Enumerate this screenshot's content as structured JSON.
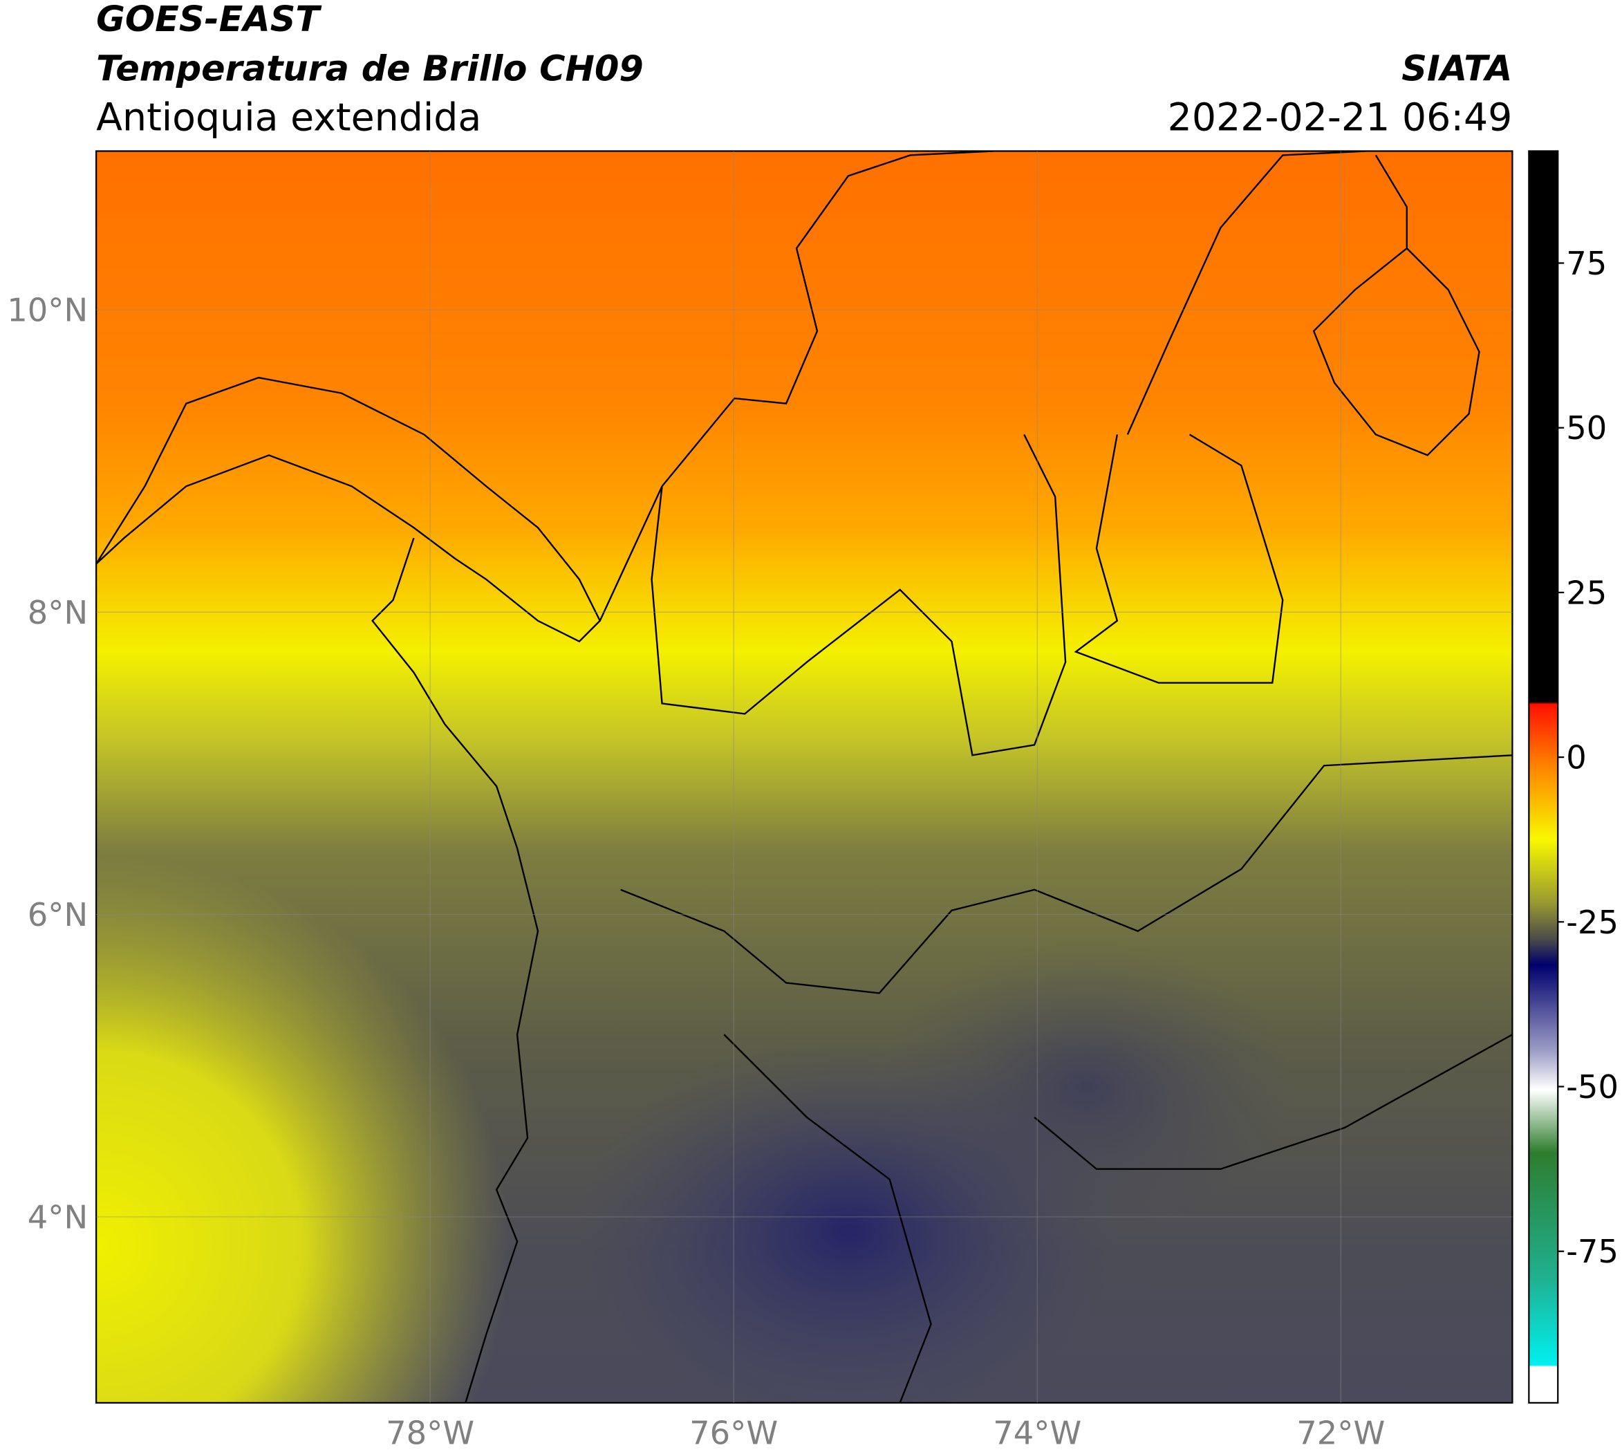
{
  "header": {
    "title": "GOES-EAST",
    "subtitle": "Temperatura de Brillo CH09",
    "region": "Antioquia extendida",
    "source": "SIATA",
    "datetime": "2022-02-21 06:49"
  },
  "map": {
    "lonlim": [
      -80.2,
      -70.87
    ],
    "latlim": [
      2.77,
      11.05
    ],
    "lat_ticks": [
      {
        "value": 10,
        "label": "10°N"
      },
      {
        "value": 8,
        "label": "8°N"
      },
      {
        "value": 6,
        "label": "6°N"
      },
      {
        "value": 4,
        "label": "4°N"
      }
    ],
    "lon_ticks": [
      {
        "value": -78,
        "label": "78°W"
      },
      {
        "value": -76,
        "label": "76°W"
      },
      {
        "value": -74,
        "label": "74°W"
      },
      {
        "value": -72,
        "label": "72°W"
      }
    ],
    "grid": true
  },
  "colorbar": {
    "lim": [
      -98,
      92
    ],
    "ticks": [
      75,
      50,
      25,
      0,
      -25,
      -50,
      -75
    ]
  }
}
